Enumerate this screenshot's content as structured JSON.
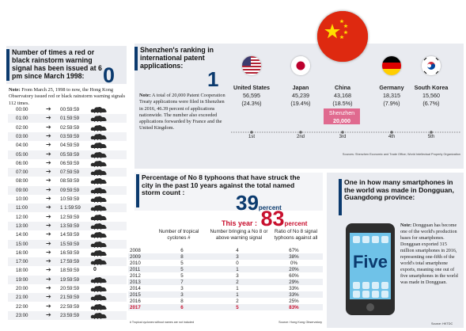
{
  "rainstorm": {
    "title": "Number of times a red or black rainstorm warning signal has been issued at 6 pm since March 1998:",
    "count": "0",
    "note_label": "Note:",
    "note": " From March 25, 1998 to now, the Hong Kong Observatory issued red or black rainstorm warning signals 112 times.",
    "rows": [
      {
        "start": "00:00",
        "end": "00:59:59",
        "count": ""
      },
      {
        "start": "01:00",
        "end": "01:59:59",
        "count": ""
      },
      {
        "start": "02:00",
        "end": "02:59:59",
        "count": ""
      },
      {
        "start": "03:00",
        "end": "03:59:59",
        "count": ""
      },
      {
        "start": "04:00",
        "end": "04:59:59",
        "count": ""
      },
      {
        "start": "05:00",
        "end": "05:59:59",
        "count": ""
      },
      {
        "start": "06:00",
        "end": "06:59:59",
        "count": ""
      },
      {
        "start": "07:00",
        "end": "07:59:59",
        "count": ""
      },
      {
        "start": "08:00",
        "end": "08:59:59",
        "count": ""
      },
      {
        "start": "09:00",
        "end": "09:59:59",
        "count": ""
      },
      {
        "start": "10:00",
        "end": "10:59:59",
        "count": ""
      },
      {
        "start": "11:00",
        "end": "1 1:59:59",
        "count": ""
      },
      {
        "start": "12:00",
        "end": "12:59:59",
        "count": ""
      },
      {
        "start": "13:00",
        "end": "13:59:59",
        "count": ""
      },
      {
        "start": "14:00",
        "end": "14:59:59",
        "count": ""
      },
      {
        "start": "15:00",
        "end": "15:59:59",
        "count": ""
      },
      {
        "start": "16:00",
        "end": "16:59:59",
        "count": ""
      },
      {
        "start": "17:00",
        "end": "17:59:59",
        "count": ""
      },
      {
        "start": "18:00",
        "end": "18:59:59",
        "count": "0"
      },
      {
        "start": "19:00",
        "end": "19:59:59",
        "count": ""
      },
      {
        "start": "20:00",
        "end": "20:59:59",
        "count": ""
      },
      {
        "start": "21:00",
        "end": "21:59:59",
        "count": ""
      },
      {
        "start": "22:00",
        "end": "22:59:59",
        "count": ""
      },
      {
        "start": "23:00",
        "end": "23:59:59",
        "count": ""
      }
    ]
  },
  "patents": {
    "title": "Shenzhen's ranking in international patent applications:",
    "rank": "1",
    "note_label": "Note:",
    "note": " A total of 20,000 Patent Cooperation Treaty applications were filed in Shenzhen in 2016, 46.39 percent of applications nationwide. The number also exceeded applications forwarded by France and the United Kingdom.",
    "countries": [
      {
        "name": "United States",
        "value": "56,595",
        "pct": "(24.3%)",
        "rank": "1st",
        "flag": "us-flag-icon"
      },
      {
        "name": "Japan",
        "value": "45,239",
        "pct": "(19.4%)",
        "rank": "2nd",
        "flag": "japan-flag-icon"
      },
      {
        "name": "China",
        "value": "43,168",
        "pct": "(18.5%)",
        "rank": "3rd",
        "flag": "china-flag-icon"
      },
      {
        "name": "Germany",
        "value": "18,315",
        "pct": "(7.9%)",
        "rank": "4th",
        "flag": "germany-flag-icon"
      },
      {
        "name": "South Korea",
        "value": "15,560",
        "pct": "(6.7%)",
        "rank": "5th",
        "flag": "south-korea-flag-icon"
      }
    ],
    "shenzhen_label": "Shenzhen",
    "shenzhen_value": "20,000",
    "source": "Sources: Shenzhen Economic and Trade Office; World Intellectual Property Organization"
  },
  "typhoon": {
    "title": "Percentage of No 8 typhoons that have struck the city in the past 10 years against the total named storm count :",
    "overall": "39",
    "overall_unit": "percent",
    "this_year_label": "This year :",
    "this_year": "83",
    "this_year_unit": "percent",
    "headers": [
      "Number of tropical cyclones #",
      "Number bringing a No 8 or above warning signal",
      "Ratio of No 8 signal typhoons against all"
    ],
    "rows": [
      {
        "year": "2008",
        "a": "6",
        "b": "4",
        "c": "67%"
      },
      {
        "year": "2009",
        "a": "8",
        "b": "3",
        "c": "38%"
      },
      {
        "year": "2010",
        "a": "5",
        "b": "0",
        "c": "0%"
      },
      {
        "year": "2011",
        "a": "5",
        "b": "1",
        "c": "20%"
      },
      {
        "year": "2012",
        "a": "5",
        "b": "3",
        "c": "60%"
      },
      {
        "year": "2013",
        "a": "7",
        "b": "2",
        "c": "29%"
      },
      {
        "year": "2014",
        "a": "3",
        "b": "1",
        "c": "33%"
      },
      {
        "year": "2015",
        "a": "3",
        "b": "1",
        "c": "33%"
      },
      {
        "year": "2016",
        "a": "8",
        "b": "2",
        "c": "25%"
      },
      {
        "year": "2017",
        "a": "6",
        "b": "5",
        "c": "83%"
      }
    ],
    "footnote": "# Tropical cyclones without names are not included",
    "source": "Source: Hong Kong Observatory"
  },
  "phones": {
    "title": "One in how many smartphones in the world was made in Dongguan, Guangdong province:",
    "screen_word": "Five",
    "note_label": "Note:",
    "note": " Dongguan has become one of the world's production bases for smartphones. Dongguan exported 315 million smartphones in 2016, representing one-fifth of the world's total smartphone exports, meaning one out of five smartphones in the world was made in Dongguan.",
    "source": "Source: HKTDC"
  },
  "colors": {
    "navy": "#0b3a6e",
    "red": "#c8102e",
    "panel": "#e9ebf0"
  }
}
